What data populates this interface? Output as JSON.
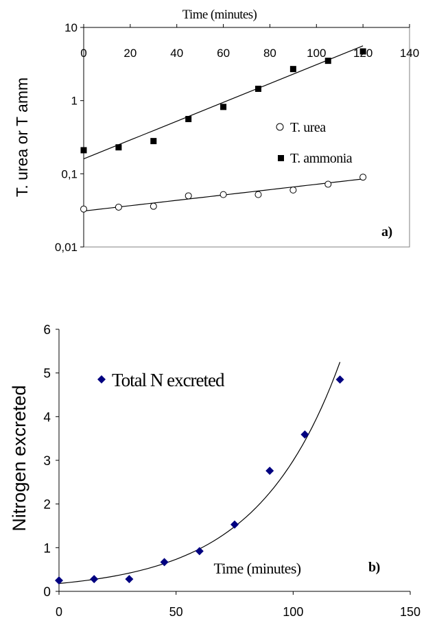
{
  "chart_data": [
    {
      "id": "a",
      "type": "scatter",
      "xlabel": "Time (minutes)",
      "ylabel": "T. urea or T amm",
      "x_ticks": [
        "0",
        "20",
        "40",
        "60",
        "80",
        "100",
        "120",
        "140"
      ],
      "x_tick_values": [
        0,
        20,
        40,
        60,
        80,
        100,
        120,
        140
      ],
      "y_ticks": [
        "10",
        "1",
        "0,1",
        "0,01"
      ],
      "y_tick_values": [
        10,
        1,
        0.1,
        0.01
      ],
      "xlim": [
        0,
        140
      ],
      "ylim": [
        0.01,
        10
      ],
      "y_scale": "log",
      "x_axis_position": "top",
      "grid": false,
      "legend": "right",
      "panel_label": "a)",
      "series": [
        {
          "name": "T. urea",
          "marker": "open-circle",
          "color": "#000000",
          "x": [
            0,
            15,
            30,
            45,
            60,
            75,
            90,
            105,
            120
          ],
          "y": [
            0.033,
            0.035,
            0.036,
            0.05,
            0.052,
            0.052,
            0.06,
            0.072,
            0.09
          ],
          "trend": {
            "type": "exponential",
            "x": [
              0,
              120
            ],
            "y": [
              0.031,
              0.085
            ]
          }
        },
        {
          "name": "T. ammonia",
          "marker": "filled-square",
          "color": "#000000",
          "x": [
            0,
            15,
            30,
            45,
            60,
            75,
            90,
            105,
            120
          ],
          "y": [
            0.21,
            0.23,
            0.28,
            0.56,
            0.82,
            1.45,
            2.7,
            3.5,
            4.7
          ],
          "trend": {
            "type": "exponential",
            "x": [
              0,
              120
            ],
            "y": [
              0.16,
              5.6
            ]
          }
        }
      ]
    },
    {
      "id": "b",
      "type": "scatter",
      "xlabel": "Time (minutes)",
      "ylabel": "Nitrogen excreted",
      "x_ticks": [
        "0",
        "50",
        "100",
        "150"
      ],
      "x_tick_values": [
        0,
        50,
        100,
        150
      ],
      "y_ticks": [
        "0",
        "1",
        "2",
        "3",
        "4",
        "5",
        "6"
      ],
      "y_tick_values": [
        0,
        1,
        2,
        3,
        4,
        5,
        6
      ],
      "xlim": [
        0,
        150
      ],
      "ylim": [
        0,
        6
      ],
      "y_scale": "linear",
      "grid": false,
      "legend": "top-left",
      "panel_label": "b)",
      "series": [
        {
          "name": "Total N excreted",
          "marker": "diamond",
          "color": "#000080",
          "x": [
            0,
            15,
            30,
            45,
            60,
            75,
            90,
            105,
            120
          ],
          "y": [
            0.25,
            0.28,
            0.28,
            0.67,
            0.92,
            1.53,
            2.76,
            3.59,
            4.85
          ],
          "trend": {
            "type": "exponential",
            "x": [
              0,
              120
            ],
            "y": [
              0.18,
              5.25
            ]
          }
        }
      ]
    }
  ]
}
